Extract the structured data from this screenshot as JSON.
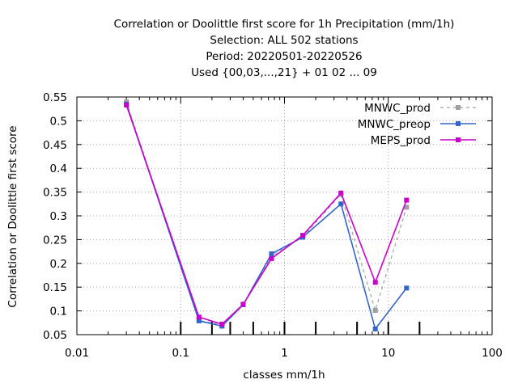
{
  "chart_data": {
    "type": "line",
    "title_lines": [
      "Correlation or Doolittle first score  for 1h Precipitation (mm/1h)",
      "Selection: ALL    502 stations",
      "Period: 20220501-20220526",
      "Used {00,03,...,21} + 01 02 ... 09"
    ],
    "xlabel": "classes mm/1h",
    "ylabel": "Correlation or Doolittle first score",
    "x_scale": "log",
    "xlim": [
      0.01,
      100
    ],
    "ylim": [
      0.05,
      0.55
    ],
    "x_tick_labels": [
      "0.01",
      "0.1",
      "1",
      "10",
      "100"
    ],
    "x_tick_values": [
      0.01,
      0.1,
      1,
      10,
      100
    ],
    "y_ticks": [
      0.05,
      0.1,
      0.15,
      0.2,
      0.25,
      0.3,
      0.35,
      0.4,
      0.45,
      0.5,
      0.55
    ],
    "y_tick_labels": [
      "0.05",
      "0.1",
      "0.15",
      "0.2",
      "0.25",
      "0.3",
      "0.35",
      "0.4",
      "0.45",
      "0.5",
      "0.55"
    ],
    "class_boundaries": [
      0.1,
      0.2,
      0.3,
      0.5,
      1,
      2,
      5,
      10,
      20
    ],
    "grid": true,
    "legend_position": "top-right",
    "series": [
      {
        "name": "MNWC_prod",
        "color": "#a0a0a0",
        "dashed": true,
        "x": [
          0.03,
          0.15,
          0.25,
          0.4,
          0.75,
          1.5,
          3.5,
          7.5,
          15
        ],
        "y": [
          0.54,
          0.08,
          0.071,
          0.113,
          0.215,
          0.256,
          0.345,
          0.101,
          0.318
        ]
      },
      {
        "name": "MNWC_preop",
        "color": "#3366cc",
        "dashed": false,
        "x": [
          0.03,
          0.15,
          0.25,
          0.4,
          0.75,
          1.5,
          3.5,
          7.5,
          15
        ],
        "y": [
          0.535,
          0.079,
          0.068,
          0.113,
          0.22,
          0.255,
          0.325,
          0.062,
          0.148
        ]
      },
      {
        "name": "MEPS_prod",
        "color": "#cc00cc",
        "dashed": false,
        "x": [
          0.03,
          0.15,
          0.25,
          0.4,
          0.75,
          1.5,
          3.5,
          7.5,
          15
        ],
        "y": [
          0.533,
          0.087,
          0.072,
          0.114,
          0.21,
          0.259,
          0.348,
          0.16,
          0.333
        ]
      }
    ]
  }
}
